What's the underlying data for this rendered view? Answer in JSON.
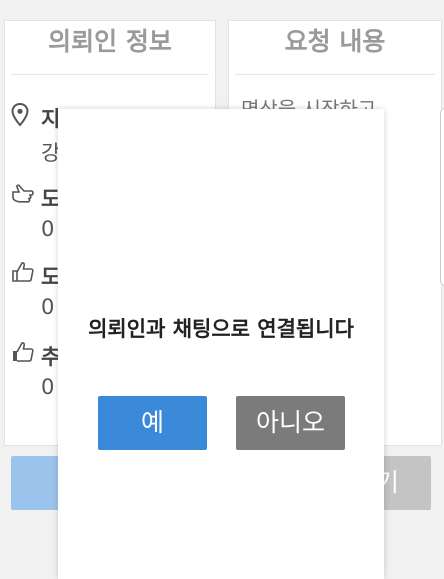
{
  "client_panel": {
    "title": "의뢰인 정보",
    "rows": [
      {
        "icon": "location-pin-icon",
        "label": "지",
        "value": "강"
      },
      {
        "icon": "pointing-hand-icon",
        "label": "도",
        "value": "0"
      },
      {
        "icon": "thumbs-up-icon",
        "label": "도",
        "value": "0"
      },
      {
        "icon": "thumbs-up-filled-icon",
        "label": "추",
        "value": "0"
      }
    ]
  },
  "request_panel": {
    "title": "요청 내용",
    "text": "면상을 시작하고"
  },
  "bottom_buttons": {
    "left_label": "",
    "right_label": "기"
  },
  "dialog": {
    "message": "의뢰인과 채팅으로 연결됩니다",
    "yes_label": "예",
    "no_label": "아니오"
  },
  "colors": {
    "primary": "#3b8ad9",
    "secondary": "#7b7b7b"
  }
}
